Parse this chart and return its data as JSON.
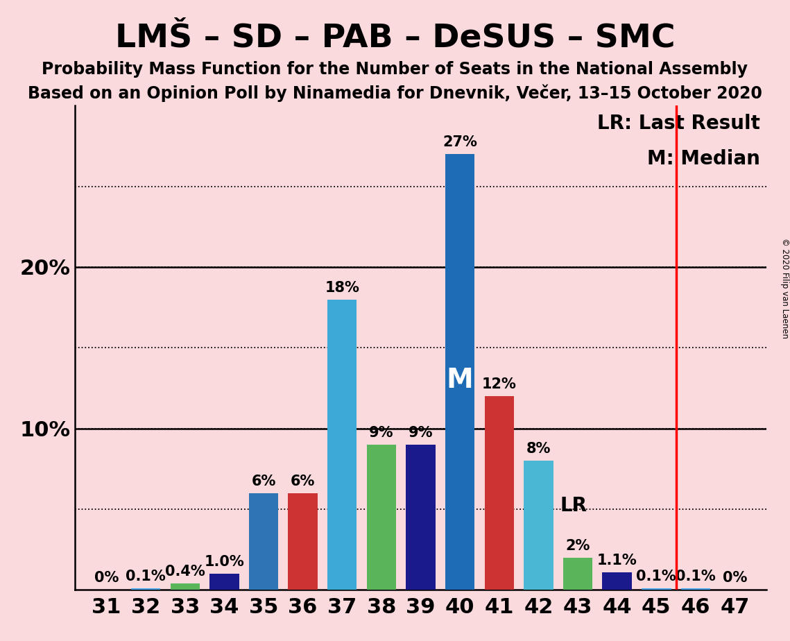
{
  "title": "LMŠ – SD – PAB – DeSUS – SMC",
  "subtitle1": "Probability Mass Function for the Number of Seats in the National Assembly",
  "subtitle2": "Based on an Opinion Poll by Ninamedia for Dnevnik, Večer, 13–15 October 2020",
  "copyright": "© 2020 Filip van Laenen",
  "background_color": "#fadadd",
  "seats": [
    31,
    32,
    33,
    34,
    35,
    36,
    37,
    38,
    39,
    40,
    41,
    42,
    43,
    44,
    45,
    46,
    47
  ],
  "probabilities": [
    0.0,
    0.1,
    0.4,
    1.0,
    6.0,
    6.0,
    18.0,
    9.0,
    9.0,
    27.0,
    12.0,
    8.0,
    2.0,
    1.1,
    0.1,
    0.1,
    0.0
  ],
  "bar_labels": [
    "0%",
    "0.1%",
    "0.4%",
    "1.0%",
    "6%",
    "6%",
    "18%",
    "9%",
    "9%",
    "27%",
    "12%",
    "8%",
    "2%",
    "1.1%",
    "0.1%",
    "0.1%",
    "0%"
  ],
  "colors_per_seat": {
    "31": "#4da6e8",
    "32": "#4da6e8",
    "33": "#5ab55a",
    "34": "#1a1a8c",
    "35": "#2e75b6",
    "36": "#cc3333",
    "37": "#3baad4",
    "38": "#5ab55a",
    "39": "#1a1a8c",
    "40": "#1e6cb5",
    "41": "#cc3333",
    "42": "#4ab8d5",
    "43": "#5ab55a",
    "44": "#1a1a8c",
    "45": "#4da6e8",
    "46": "#4da6e8",
    "47": "#4da6e8"
  },
  "median_seat": 40,
  "last_result_x": 45.5,
  "ylim": [
    0,
    30
  ],
  "grid_y": [
    5,
    10,
    15,
    20,
    25
  ],
  "title_fontsize": 34,
  "subtitle_fontsize": 17,
  "axis_tick_fontsize": 22,
  "bar_label_fontsize": 15,
  "legend_fontsize": 20,
  "median_label_fontsize": 28,
  "lr_label_fontsize": 20,
  "xlim": [
    30.2,
    47.8
  ]
}
